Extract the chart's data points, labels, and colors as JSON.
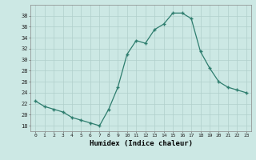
{
  "x": [
    0,
    1,
    2,
    3,
    4,
    5,
    6,
    7,
    8,
    9,
    10,
    11,
    12,
    13,
    14,
    15,
    16,
    17,
    18,
    19,
    20,
    21,
    22,
    23
  ],
  "y": [
    22.5,
    21.5,
    21.0,
    20.5,
    19.5,
    19.0,
    18.5,
    18.0,
    21.0,
    25.0,
    31.0,
    33.5,
    33.0,
    35.5,
    36.5,
    38.5,
    38.5,
    37.5,
    31.5,
    28.5,
    26.0,
    25.0,
    24.5,
    24.0
  ],
  "xlabel": "Humidex (Indice chaleur)",
  "xlim": [
    -0.5,
    23.5
  ],
  "ylim": [
    17,
    40
  ],
  "yticks": [
    18,
    20,
    22,
    24,
    26,
    28,
    30,
    32,
    34,
    36,
    38
  ],
  "xticks": [
    0,
    1,
    2,
    3,
    4,
    5,
    6,
    7,
    8,
    9,
    10,
    11,
    12,
    13,
    14,
    15,
    16,
    17,
    18,
    19,
    20,
    21,
    22,
    23
  ],
  "line_color": "#2e7d6e",
  "bg_color": "#cce8e4",
  "grid_color": "#b0cfcb"
}
